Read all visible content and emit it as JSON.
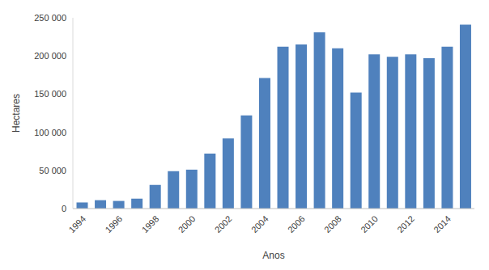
{
  "chart_data": {
    "type": "bar",
    "categories": [
      "1994",
      null,
      "1996",
      null,
      "1998",
      null,
      "2000",
      null,
      "2002",
      null,
      "2004",
      null,
      "2006",
      null,
      "2008",
      null,
      "2010",
      null,
      "2012",
      null,
      "2014",
      null
    ],
    "values": [
      8000,
      11000,
      10000,
      13000,
      31000,
      49000,
      51000,
      72000,
      92000,
      122000,
      171000,
      212000,
      215000,
      231000,
      210000,
      152000,
      202000,
      199000,
      202000,
      197000,
      212000,
      241000
    ],
    "color": "#4f81bd",
    "x_label": "Anos",
    "y_label": "Hectares",
    "ylim": [
      0,
      250000
    ],
    "yticks": [
      0,
      {
        "value": 50000,
        "label": "50 000"
      },
      {
        "value": 100000,
        "label": "100 000"
      },
      {
        "value": 150000,
        "label": "150 000"
      },
      {
        "value": 200000,
        "label": "200 000"
      },
      {
        "value": 250000,
        "label": "250 000"
      }
    ],
    "grid": false
  }
}
